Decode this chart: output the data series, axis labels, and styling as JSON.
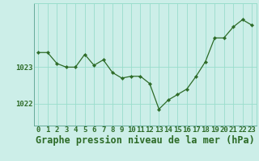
{
  "hours": [
    0,
    1,
    2,
    3,
    4,
    5,
    6,
    7,
    8,
    9,
    10,
    11,
    12,
    13,
    14,
    15,
    16,
    17,
    18,
    19,
    20,
    21,
    22,
    23
  ],
  "pressure": [
    1023.4,
    1023.4,
    1023.1,
    1023.0,
    1023.0,
    1023.35,
    1023.05,
    1023.2,
    1022.85,
    1022.7,
    1022.75,
    1022.75,
    1022.55,
    1021.85,
    1022.1,
    1022.25,
    1022.4,
    1022.75,
    1023.15,
    1023.8,
    1023.8,
    1024.1,
    1024.3,
    1024.15
  ],
  "line_color": "#2d6b27",
  "marker_color": "#2d6b27",
  "bg_color": "#cceee8",
  "grid_color": "#99ddcc",
  "xlabel": "Graphe pression niveau de la mer (hPa)",
  "yticks": [
    1022,
    1023
  ],
  "ylim": [
    1021.4,
    1024.75
  ],
  "xlim": [
    -0.5,
    23.5
  ],
  "xlabel_fontsize": 8.5,
  "tick_fontsize": 6.5
}
